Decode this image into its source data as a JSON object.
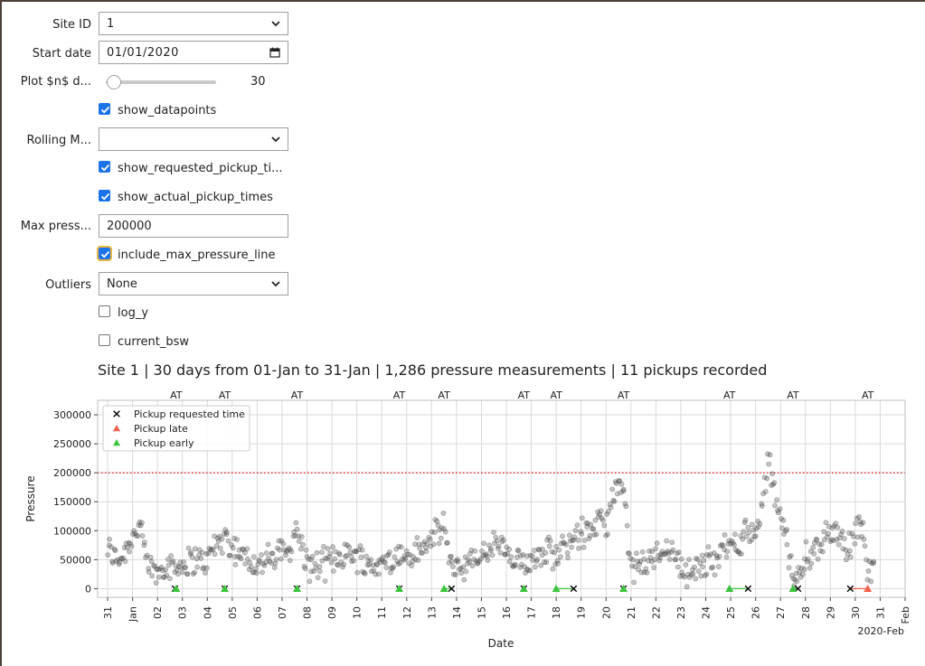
{
  "form": {
    "site_id": {
      "label": "Site ID",
      "value": "1"
    },
    "start_date": {
      "label": "Start date",
      "value": "01/01/2020"
    },
    "plot_days": {
      "label": "Plot $n$ d...",
      "value": "30",
      "fraction": 0.07
    },
    "show_datapoints": {
      "label": "show_datapoints",
      "checked": true
    },
    "rolling": {
      "label": "Rolling M...",
      "value": ""
    },
    "show_requested": {
      "label": "show_requested_pickup_ti...",
      "checked": true
    },
    "show_actual": {
      "label": "show_actual_pickup_times",
      "checked": true
    },
    "max_pressure": {
      "label": "Max press...",
      "value": "200000"
    },
    "include_max": {
      "label": "include_max_pressure_line",
      "checked": true
    },
    "outliers": {
      "label": "Outliers",
      "value": "None"
    },
    "log_y": {
      "label": "log_y",
      "checked": false
    },
    "current_bsw": {
      "label": "current_bsw",
      "checked": false
    }
  },
  "plot_title": "Site 1 | 30 days from 01-Jan to 31-Jan | 1,286 pressure measurements | 11 pickups recorded",
  "colors": {
    "late": "#f0604c",
    "early": "#3ec43e",
    "max_line": "#e02020",
    "points": "#555555"
  },
  "chart_data": {
    "type": "scatter",
    "xlabel": "Date",
    "ylabel": "Pressure",
    "xlim_days": [
      30.6,
      63.0
    ],
    "ylim": [
      -15000,
      325000
    ],
    "yticks": [
      0,
      50000,
      100000,
      150000,
      200000,
      250000,
      300000
    ],
    "ytick_labels": [
      "0",
      "50000",
      "100000",
      "150000",
      "200000",
      "250000",
      "300000"
    ],
    "xtick_labels": [
      "31",
      "Jan",
      "02",
      "03",
      "04",
      "05",
      "06",
      "07",
      "08",
      "09",
      "10",
      "11",
      "12",
      "13",
      "14",
      "15",
      "16",
      "17",
      "18",
      "19",
      "20",
      "21",
      "22",
      "23",
      "24",
      "25",
      "26",
      "27",
      "28",
      "29",
      "30",
      "31",
      "Feb"
    ],
    "x_offset_label": "2020-Feb",
    "max_pressure_line": 200000,
    "grid": true,
    "legend_placement": "top-left",
    "legend": [
      "Pickup requested time",
      "Pickup late",
      "Pickup early"
    ],
    "pickup_annotation": "AT",
    "pickups": [
      {
        "requested": 33.7,
        "actual": 33.75,
        "status": "early"
      },
      {
        "requested": 35.7,
        "actual": 35.7,
        "status": "early"
      },
      {
        "requested": 38.6,
        "actual": 38.6,
        "status": "early"
      },
      {
        "requested": 42.7,
        "actual": 42.7,
        "status": "early"
      },
      {
        "requested": 44.8,
        "actual": 44.5,
        "status": "early"
      },
      {
        "requested": 47.7,
        "actual": 47.7,
        "status": "early"
      },
      {
        "requested": 49.7,
        "actual": 49.0,
        "status": "early"
      },
      {
        "requested": 51.7,
        "actual": 51.7,
        "status": "early"
      },
      {
        "requested": 56.7,
        "actual": 55.95,
        "status": "early"
      },
      {
        "requested": 58.7,
        "actual": 58.5,
        "status": "early"
      },
      {
        "requested": 60.8,
        "actual": 61.5,
        "status": "late"
      }
    ],
    "trend": [
      [
        31.0,
        68000
      ],
      [
        31.5,
        50000
      ],
      [
        31.9,
        85000
      ],
      [
        32.3,
        110000
      ],
      [
        32.6,
        40000
      ],
      [
        33.0,
        25000
      ],
      [
        33.3,
        45000
      ],
      [
        33.7,
        38000
      ],
      [
        34.0,
        40000
      ],
      [
        34.5,
        52000
      ],
      [
        34.9,
        42000
      ],
      [
        35.3,
        75000
      ],
      [
        35.7,
        90000
      ],
      [
        36.1,
        70000
      ],
      [
        36.5,
        55000
      ],
      [
        37.0,
        42000
      ],
      [
        37.5,
        48000
      ],
      [
        37.9,
        60000
      ],
      [
        38.3,
        70000
      ],
      [
        38.6,
        100000
      ],
      [
        39.0,
        42000
      ],
      [
        39.5,
        38000
      ],
      [
        40.0,
        50000
      ],
      [
        40.5,
        62000
      ],
      [
        41.0,
        58000
      ],
      [
        41.5,
        42000
      ],
      [
        41.9,
        40000
      ],
      [
        42.3,
        48000
      ],
      [
        42.7,
        55000
      ],
      [
        43.2,
        55000
      ],
      [
        43.7,
        70000
      ],
      [
        44.1,
        90000
      ],
      [
        44.5,
        105000
      ],
      [
        44.8,
        40000
      ],
      [
        45.3,
        38000
      ],
      [
        45.7,
        48000
      ],
      [
        46.2,
        62000
      ],
      [
        46.7,
        80000
      ],
      [
        47.2,
        45000
      ],
      [
        47.7,
        40000
      ],
      [
        48.2,
        60000
      ],
      [
        48.7,
        75000
      ],
      [
        49.0,
        50000
      ],
      [
        49.4,
        80000
      ],
      [
        49.9,
        95000
      ],
      [
        50.3,
        100000
      ],
      [
        50.7,
        115000
      ],
      [
        51.0,
        110000
      ],
      [
        51.4,
        175000
      ],
      [
        51.7,
        165000
      ],
      [
        52.0,
        30000
      ],
      [
        52.5,
        42000
      ],
      [
        53.0,
        60000
      ],
      [
        53.5,
        75000
      ],
      [
        54.0,
        40000
      ],
      [
        54.4,
        25000
      ],
      [
        54.9,
        40000
      ],
      [
        55.4,
        55000
      ],
      [
        55.9,
        70000
      ],
      [
        56.3,
        85000
      ],
      [
        56.7,
        95000
      ],
      [
        57.0,
        100000
      ],
      [
        57.3,
        140000
      ],
      [
        57.5,
        220000
      ],
      [
        57.8,
        160000
      ],
      [
        58.1,
        110000
      ],
      [
        58.5,
        25000
      ],
      [
        58.9,
        45000
      ],
      [
        59.4,
        70000
      ],
      [
        59.9,
        95000
      ],
      [
        60.3,
        105000
      ],
      [
        60.7,
        60000
      ],
      [
        61.0,
        105000
      ],
      [
        61.3,
        110000
      ],
      [
        61.5,
        25000
      ],
      [
        61.8,
        45000
      ]
    ]
  }
}
